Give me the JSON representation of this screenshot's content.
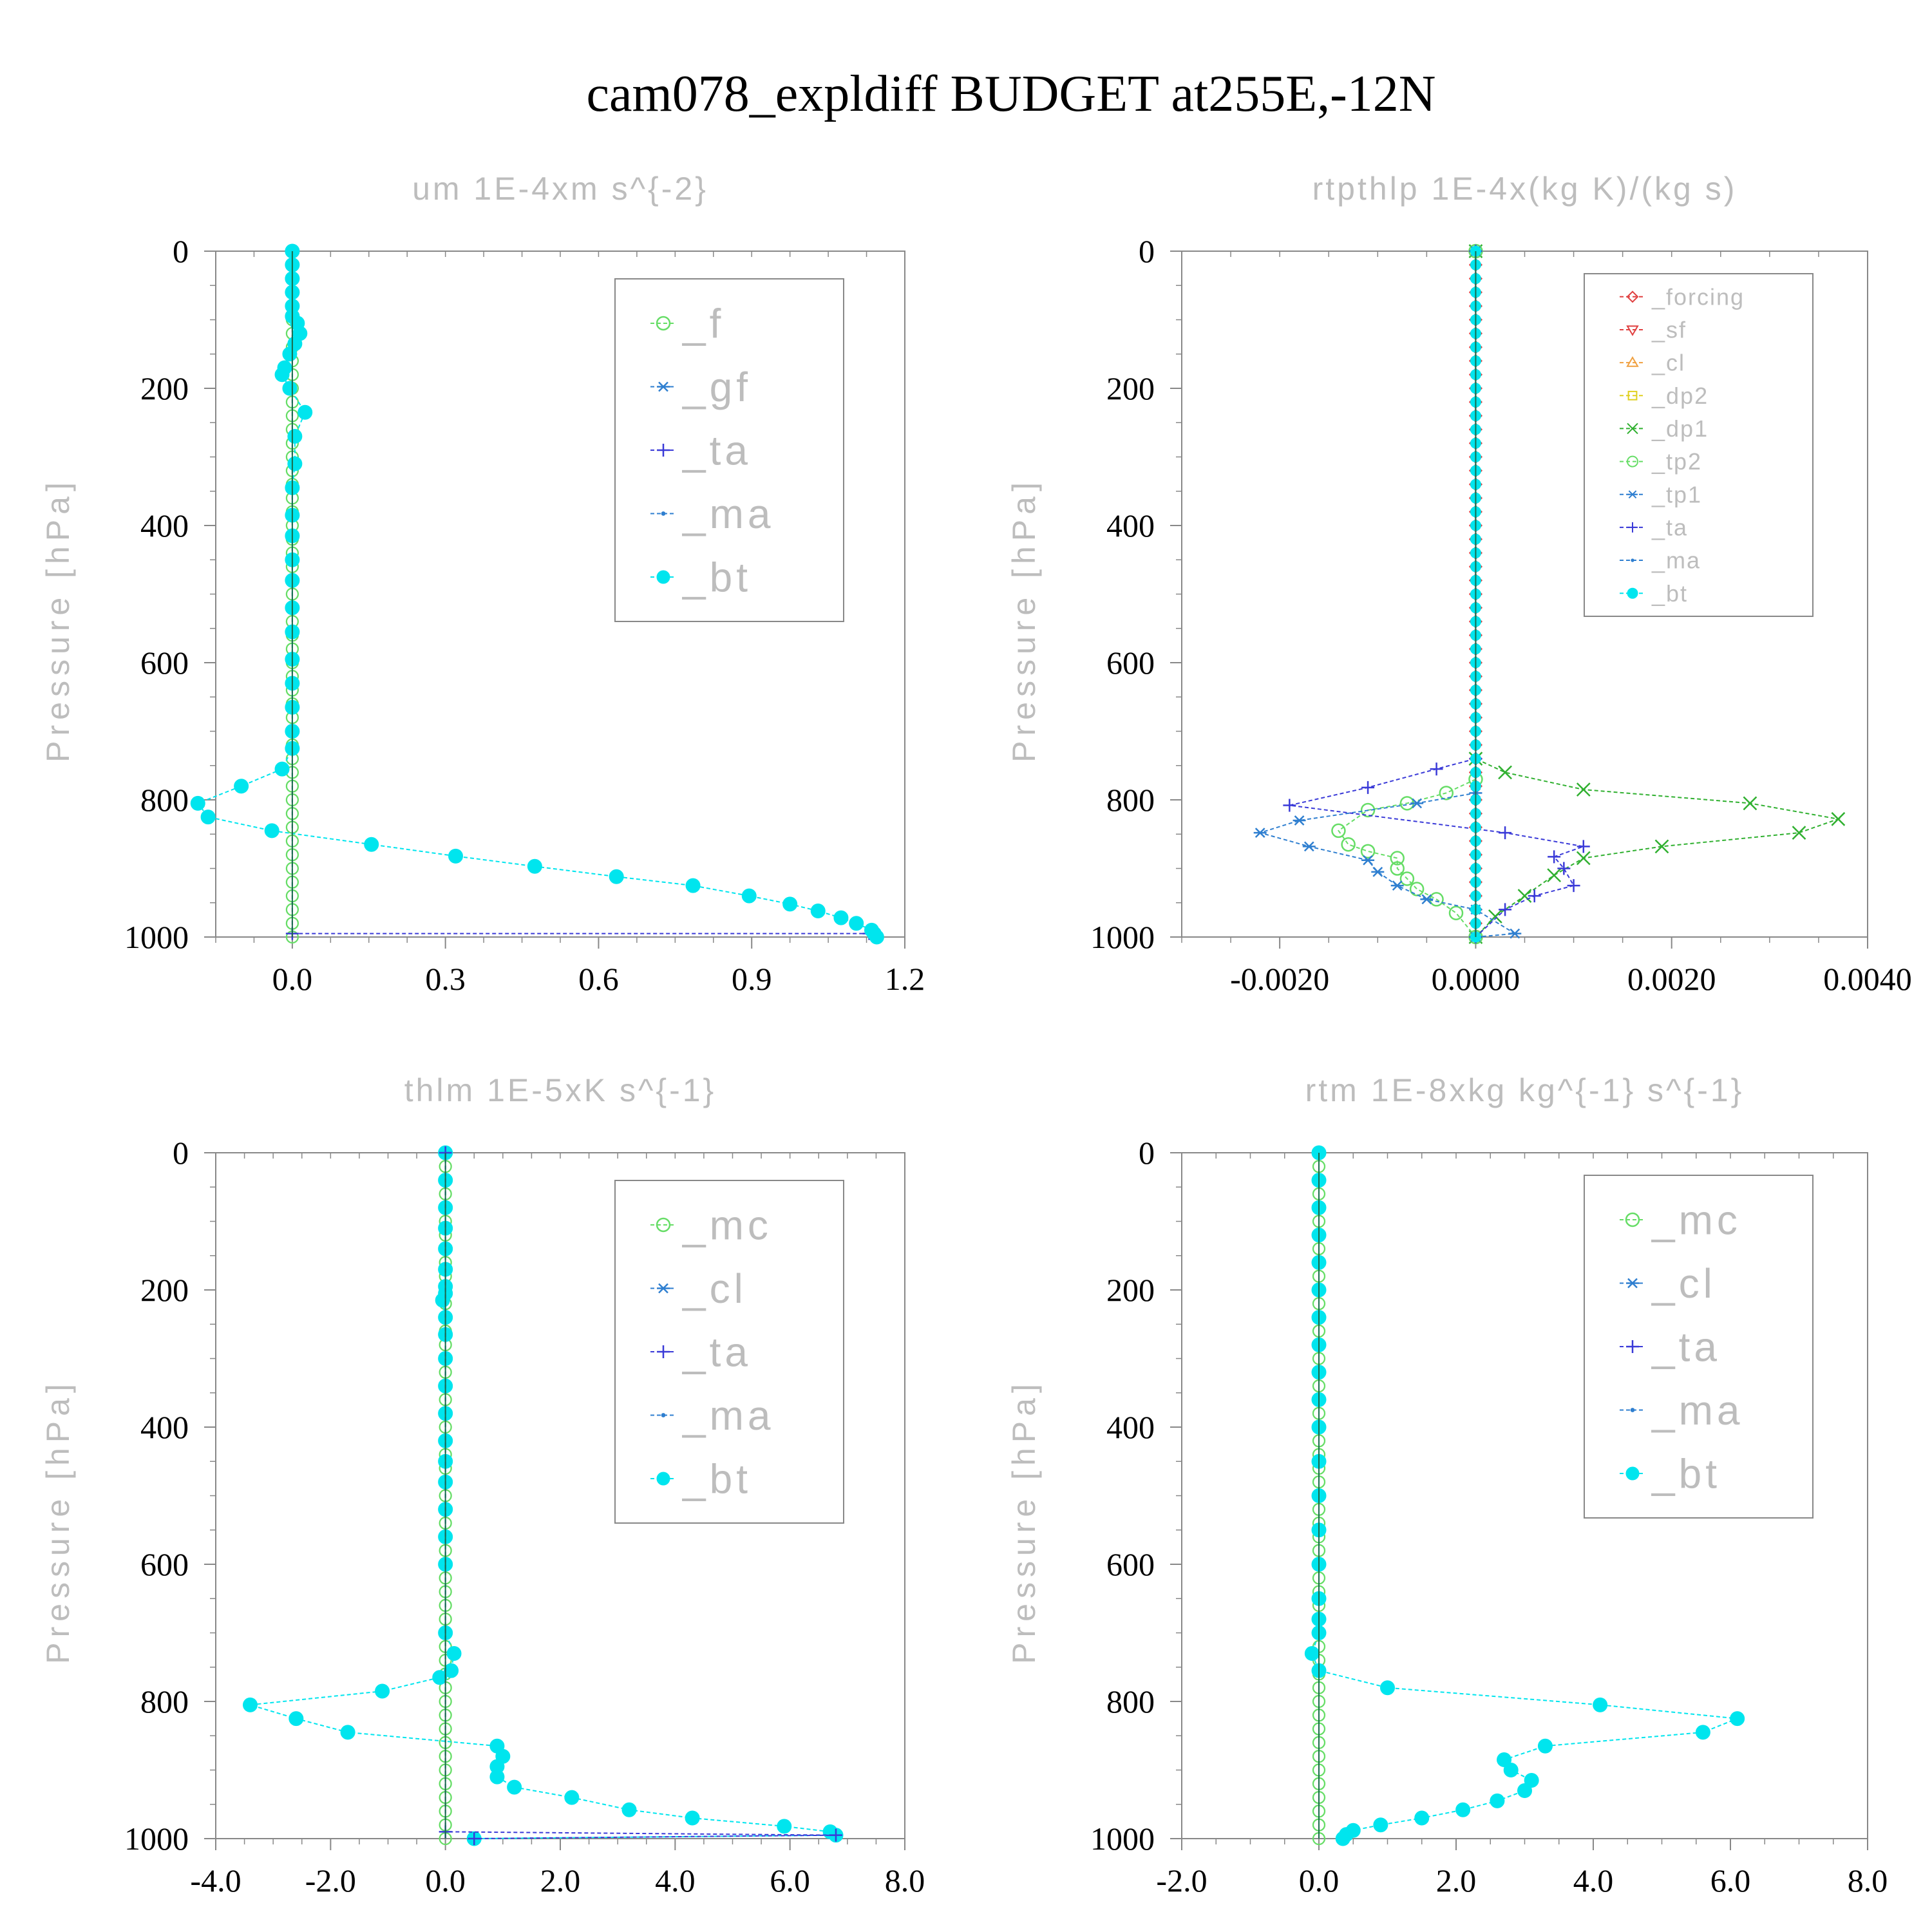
{
  "title": "cam078_expldiff  BUDGET at255E,-12N",
  "colors": {
    "cyan": "#00e5ee",
    "green": "#66dd66",
    "blue": "#2f7fd0",
    "navy": "#3a3ad8",
    "red": "#e04040",
    "orange": "#f0a040",
    "yellow": "#e0d020",
    "dkgreen": "#30b030",
    "grey": "#bdbdbd",
    "axis": "#888888",
    "grid": "#cccccc"
  },
  "chart_data": [
    {
      "type": "line",
      "title": "um  1E-4xm s^{-2}",
      "ylabel": "Pressure [hPa]",
      "xlim": [
        -0.15,
        1.2
      ],
      "ylim": [
        1000,
        0
      ],
      "xticks": [
        0.0,
        0.3,
        0.6,
        0.9,
        1.2
      ],
      "xtick_labels": [
        "0.0",
        "0.3",
        "0.6",
        "0.9",
        "1.2"
      ],
      "yticks": [
        0,
        200,
        400,
        600,
        800,
        1000
      ],
      "ytick_labels": [
        "0",
        "200",
        "400",
        "600",
        "800",
        "1000"
      ],
      "legend": [
        {
          "label": "_f",
          "color": "green",
          "marker": "circle"
        },
        {
          "label": "_gf",
          "color": "blue",
          "marker": "asterisk"
        },
        {
          "label": "_ta",
          "color": "navy",
          "marker": "plus"
        },
        {
          "label": "_ma",
          "color": "blue",
          "marker": "dot"
        },
        {
          "label": "_bt",
          "color": "cyan",
          "marker": "filled"
        }
      ],
      "legend_font": 64,
      "series": [
        {
          "name": "_f",
          "color": "green",
          "marker": "circle",
          "x": [
            0,
            0
          ],
          "y": [
            0,
            1000
          ]
        },
        {
          "name": "_ta",
          "color": "navy",
          "marker": "plus",
          "x": [
            0,
            0,
            1.13,
            1.14
          ],
          "y": [
            0,
            995,
            995,
            1000
          ]
        },
        {
          "name": "_bt",
          "color": "cyan",
          "marker": "filled",
          "x": [
            0,
            0,
            0,
            0,
            0,
            0,
            0.01,
            0.015,
            0.005,
            -0.005,
            -0.015,
            -0.02,
            -0.005,
            0.025,
            0.005,
            0.005,
            0,
            0,
            0,
            0,
            0,
            0,
            0,
            0,
            0,
            0,
            0,
            0,
            -0.02,
            -0.1,
            -0.185,
            -0.165,
            -0.04,
            0.155,
            0.32,
            0.475,
            0.635,
            0.785,
            0.895,
            0.975,
            1.03,
            1.075,
            1.105,
            1.135,
            1.14,
            1.145
          ],
          "y": [
            0,
            20,
            40,
            60,
            80,
            95,
            105,
            120,
            135,
            150,
            170,
            180,
            200,
            235,
            270,
            310,
            345,
            385,
            415,
            450,
            480,
            520,
            555,
            595,
            630,
            665,
            700,
            725,
            755,
            780,
            805,
            825,
            845,
            865,
            882,
            897,
            912,
            925,
            940,
            952,
            962,
            972,
            980,
            990,
            995,
            1000
          ]
        }
      ]
    },
    {
      "type": "line",
      "title": "rtpthlp  1E-4x(kg K)/(kg s)",
      "ylabel": "Pressure [hPa]",
      "xlim": [
        -0.003,
        0.004
      ],
      "ylim": [
        1000,
        0
      ],
      "xticks": [
        -0.002,
        0.0,
        0.002,
        0.004
      ],
      "xtick_labels": [
        "-0.0020",
        "0.0000",
        "0.0020",
        "0.0040"
      ],
      "yticks": [
        0,
        200,
        400,
        600,
        800,
        1000
      ],
      "ytick_labels": [
        "0",
        "200",
        "400",
        "600",
        "800",
        "1000"
      ],
      "legend": [
        {
          "label": "_forcing",
          "color": "red",
          "marker": "diamond"
        },
        {
          "label": "_sf",
          "color": "red",
          "marker": "triangle-down"
        },
        {
          "label": "_cl",
          "color": "orange",
          "marker": "triangle-up"
        },
        {
          "label": "_dp2",
          "color": "yellow",
          "marker": "square"
        },
        {
          "label": "_dp1",
          "color": "dkgreen",
          "marker": "cross"
        },
        {
          "label": "_tp2",
          "color": "green",
          "marker": "circle"
        },
        {
          "label": "_tp1",
          "color": "blue",
          "marker": "asterisk"
        },
        {
          "label": "_ta",
          "color": "navy",
          "marker": "plus"
        },
        {
          "label": "_ma",
          "color": "blue",
          "marker": "dot"
        },
        {
          "label": "_bt",
          "color": "cyan",
          "marker": "filled"
        }
      ],
      "legend_font": 36,
      "series": [
        {
          "name": "_forcing",
          "color": "red",
          "marker": "diamond",
          "x": [
            0,
            0
          ],
          "y": [
            0,
            1000
          ]
        },
        {
          "name": "_dp1",
          "color": "dkgreen",
          "marker": "cross",
          "x": [
            0,
            0,
            0.0003,
            0.0011,
            0.0028,
            0.0037,
            0.0033,
            0.0019,
            0.0011,
            0.0008,
            0.0005,
            0.0002,
            0
          ],
          "y": [
            0,
            740,
            760,
            785,
            805,
            828,
            848,
            868,
            885,
            910,
            940,
            970,
            1000
          ]
        },
        {
          "name": "_tp2",
          "color": "green",
          "marker": "circle",
          "x": [
            0,
            0,
            -0.0003,
            -0.0007,
            -0.0011,
            -0.0014,
            -0.0013,
            -0.0011,
            -0.0008,
            -0.0008,
            -0.0007,
            -0.0006,
            -0.0004,
            -0.0002,
            0
          ],
          "y": [
            0,
            770,
            790,
            805,
            815,
            845,
            865,
            875,
            885,
            900,
            915,
            930,
            945,
            965,
            1000
          ]
        },
        {
          "name": "_tp1",
          "color": "blue",
          "marker": "asterisk",
          "x": [
            0,
            0,
            -0.0006,
            -0.0018,
            -0.0022,
            -0.0017,
            -0.0011,
            -0.001,
            -0.0008,
            -0.0005,
            0,
            0.0004,
            0
          ],
          "y": [
            0,
            790,
            805,
            830,
            848,
            868,
            888,
            905,
            925,
            945,
            960,
            995,
            1000
          ]
        },
        {
          "name": "_ta",
          "color": "navy",
          "marker": "plus",
          "x": [
            0,
            0,
            -0.0004,
            -0.0011,
            -0.0019,
            0.0003,
            0.0011,
            0.0008,
            0.0009,
            0.001,
            0.0006,
            0.0003,
            0
          ],
          "y": [
            0,
            740,
            755,
            782,
            808,
            848,
            868,
            883,
            900,
            925,
            940,
            960,
            1000
          ]
        },
        {
          "name": "_bt",
          "color": "cyan",
          "marker": "filled",
          "x": [
            0,
            0
          ],
          "y": [
            0,
            1000
          ]
        }
      ]
    },
    {
      "type": "line",
      "title": "thlm  1E-5xK s^{-1}",
      "ylabel": "Pressure [hPa]",
      "xlim": [
        -4.0,
        8.0
      ],
      "ylim": [
        1000,
        0
      ],
      "xticks": [
        -4.0,
        -2.0,
        0.0,
        2.0,
        4.0,
        6.0,
        8.0
      ],
      "xtick_labels": [
        "-4.0",
        "-2.0",
        "0.0",
        "2.0",
        "4.0",
        "6.0",
        "8.0"
      ],
      "yticks": [
        0,
        200,
        400,
        600,
        800,
        1000
      ],
      "ytick_labels": [
        "0",
        "200",
        "400",
        "600",
        "800",
        "1000"
      ],
      "legend": [
        {
          "label": "_mc",
          "color": "green",
          "marker": "circle"
        },
        {
          "label": "_cl",
          "color": "blue",
          "marker": "asterisk"
        },
        {
          "label": "_ta",
          "color": "navy",
          "marker": "plus"
        },
        {
          "label": "_ma",
          "color": "blue",
          "marker": "dot"
        },
        {
          "label": "_bt",
          "color": "cyan",
          "marker": "filled"
        }
      ],
      "legend_font": 64,
      "series": [
        {
          "name": "_mc",
          "color": "green",
          "marker": "circle",
          "x": [
            0,
            0
          ],
          "y": [
            0,
            1000
          ]
        },
        {
          "name": "_bt",
          "color": "cyan",
          "marker": "filled",
          "x": [
            0,
            0,
            0,
            0,
            0,
            0,
            0,
            0,
            -0.05,
            0,
            0,
            0,
            0,
            0,
            0,
            0,
            0,
            0,
            0,
            0,
            0,
            0.15,
            0.1,
            -0.1,
            -1.1,
            -3.4,
            -2.6,
            -1.7,
            0.9,
            1.0,
            0.9,
            0.9,
            1.2,
            2.2,
            3.2,
            4.3,
            5.9,
            6.7,
            6.8,
            0.5
          ],
          "y": [
            0,
            40,
            80,
            110,
            140,
            170,
            195,
            205,
            215,
            240,
            265,
            300,
            340,
            380,
            420,
            450,
            480,
            520,
            560,
            600,
            700,
            730,
            755,
            765,
            785,
            805,
            825,
            845,
            865,
            880,
            895,
            910,
            925,
            940,
            958,
            970,
            982,
            990,
            995,
            1000
          ]
        },
        {
          "name": "_ta",
          "color": "navy",
          "marker": "plus",
          "x": [
            0,
            0,
            6.8,
            0.5
          ],
          "y": [
            0,
            990,
            995,
            1000
          ]
        }
      ]
    },
    {
      "type": "line",
      "title": "rtm  1E-8xkg kg^{-1} s^{-1}",
      "ylabel": "Pressure [hPa]",
      "xlim": [
        -2.0,
        8.0
      ],
      "ylim": [
        1000,
        0
      ],
      "xticks": [
        -2.0,
        0.0,
        2.0,
        4.0,
        6.0,
        8.0
      ],
      "xtick_labels": [
        "-2.0",
        "0.0",
        "2.0",
        "4.0",
        "6.0",
        "8.0"
      ],
      "yticks": [
        0,
        200,
        400,
        600,
        800,
        1000
      ],
      "ytick_labels": [
        "0",
        "200",
        "400",
        "600",
        "800",
        "1000"
      ],
      "legend": [
        {
          "label": "_mc",
          "color": "green",
          "marker": "circle"
        },
        {
          "label": "_cl",
          "color": "blue",
          "marker": "asterisk"
        },
        {
          "label": "_ta",
          "color": "navy",
          "marker": "plus"
        },
        {
          "label": "_ma",
          "color": "blue",
          "marker": "dot"
        },
        {
          "label": "_bt",
          "color": "cyan",
          "marker": "filled"
        }
      ],
      "legend_font": 64,
      "series": [
        {
          "name": "_mc",
          "color": "green",
          "marker": "circle",
          "x": [
            0,
            0
          ],
          "y": [
            0,
            1000
          ]
        },
        {
          "name": "_bt",
          "color": "cyan",
          "marker": "filled",
          "x": [
            0,
            0,
            0,
            0,
            0,
            0,
            0,
            0,
            0,
            0,
            0,
            0,
            0,
            0,
            0,
            0,
            0,
            0,
            -0.1,
            0,
            1.0,
            4.1,
            6.1,
            5.6,
            3.3,
            2.7,
            2.8,
            3.1,
            3.0,
            2.6,
            2.1,
            1.5,
            0.9,
            0.5,
            0.4,
            0.35
          ],
          "y": [
            0,
            40,
            80,
            120,
            160,
            200,
            240,
            280,
            320,
            360,
            400,
            450,
            500,
            550,
            600,
            650,
            680,
            700,
            730,
            755,
            780,
            805,
            825,
            845,
            865,
            885,
            900,
            915,
            930,
            945,
            958,
            970,
            980,
            988,
            994,
            1000
          ]
        }
      ]
    }
  ]
}
